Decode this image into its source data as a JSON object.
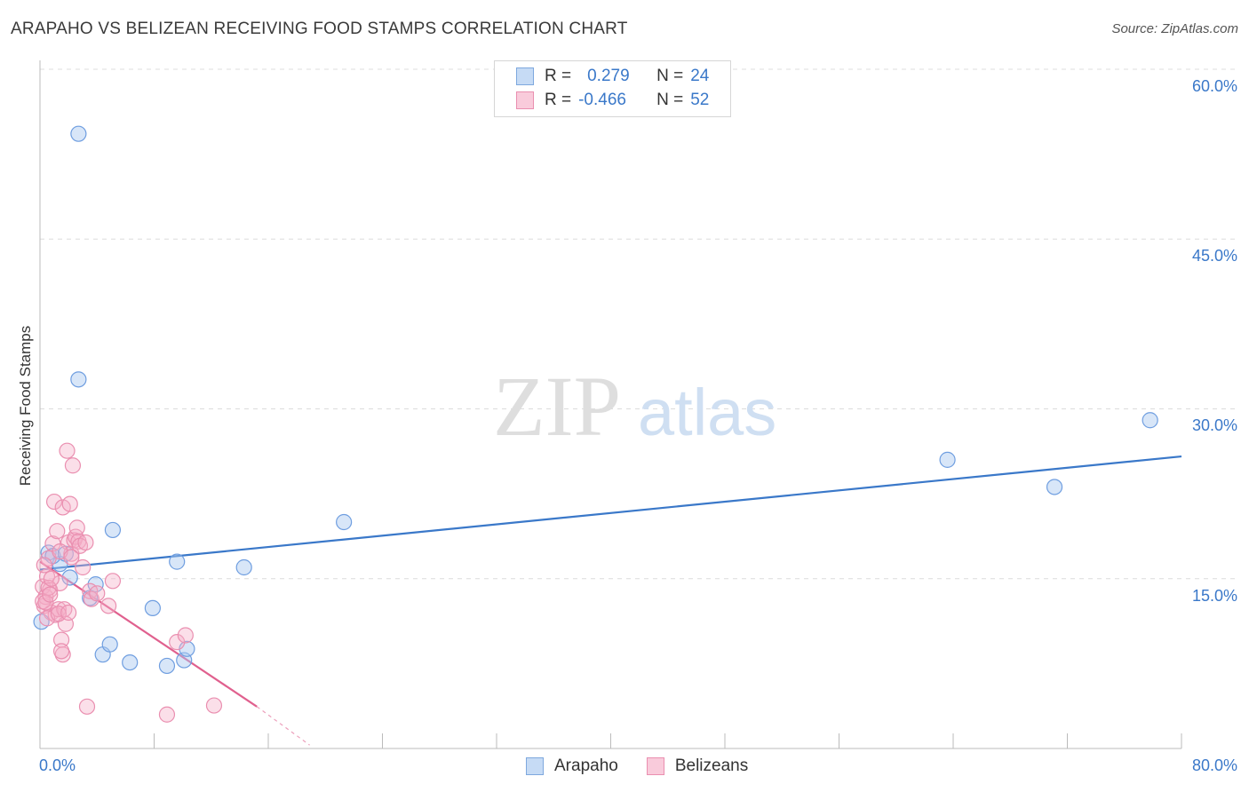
{
  "header": {
    "title": "ARAPAHO VS BELIZEAN RECEIVING FOOD STAMPS CORRELATION CHART",
    "source": "Source: ZipAtlas.com"
  },
  "watermark": {
    "zip": "ZIP",
    "atlas": "atlas"
  },
  "colors": {
    "blue": "#3a78c9",
    "blue_fill": "#a9c8f0",
    "pink": "#e0608e",
    "pink_fill": "#f4b0c8",
    "grid": "#dcdcdc"
  },
  "legend_top": {
    "rows": [
      {
        "r_label": "R =",
        "r_value": "0.279",
        "n_label": "N =",
        "n_value": "24"
      },
      {
        "r_label": "R =",
        "r_value": "-0.466",
        "n_label": "N =",
        "n_value": "52"
      }
    ]
  },
  "chart_data": {
    "type": "scatter",
    "title": "ARAPAHO VS BELIZEAN RECEIVING FOOD STAMPS CORRELATION CHART",
    "xlabel": "",
    "ylabel": "Receiving Food Stamps",
    "xlim": [
      0,
      80
    ],
    "ylim": [
      0,
      60
    ],
    "x_tick_labels": [
      "0.0%",
      "80.0%"
    ],
    "y_tick_labels": [
      "15.0%",
      "30.0%",
      "45.0%",
      "60.0%"
    ],
    "y_ticks": [
      15,
      30,
      45,
      60
    ],
    "series": [
      {
        "name": "Arapaho",
        "points": [
          [
            0.1,
            11.2
          ],
          [
            0.6,
            17.3
          ],
          [
            1.4,
            16.3
          ],
          [
            2.1,
            15.1
          ],
          [
            2.7,
            32.6
          ],
          [
            2.7,
            54.3
          ],
          [
            3.9,
            14.5
          ],
          [
            3.5,
            13.3
          ],
          [
            4.4,
            8.3
          ],
          [
            4.9,
            9.2
          ],
          [
            5.1,
            19.3
          ],
          [
            6.3,
            7.6
          ],
          [
            7.9,
            12.4
          ],
          [
            8.9,
            7.3
          ],
          [
            9.6,
            16.5
          ],
          [
            10.1,
            7.8
          ],
          [
            10.3,
            8.8
          ],
          [
            14.3,
            16.0
          ],
          [
            21.3,
            20.0
          ],
          [
            63.6,
            25.5
          ],
          [
            71.1,
            23.1
          ],
          [
            77.8,
            29.0
          ],
          [
            0.9,
            17.0
          ],
          [
            1.8,
            17.2
          ]
        ],
        "trend": {
          "x": [
            0,
            80
          ],
          "y": [
            15.8,
            25.8
          ]
        }
      },
      {
        "name": "Belizeans",
        "points": [
          [
            0.2,
            14.3
          ],
          [
            0.3,
            12.6
          ],
          [
            0.4,
            13.4
          ],
          [
            0.5,
            15.2
          ],
          [
            0.6,
            16.8
          ],
          [
            0.7,
            14.0
          ],
          [
            0.8,
            12.0
          ],
          [
            0.9,
            18.1
          ],
          [
            1.0,
            21.8
          ],
          [
            1.1,
            11.8
          ],
          [
            1.2,
            19.2
          ],
          [
            1.3,
            12.3
          ],
          [
            1.4,
            14.6
          ],
          [
            1.5,
            9.6
          ],
          [
            1.6,
            21.3
          ],
          [
            1.7,
            12.3
          ],
          [
            1.8,
            11.0
          ],
          [
            1.9,
            26.3
          ],
          [
            2.0,
            18.2
          ],
          [
            2.1,
            21.6
          ],
          [
            2.2,
            17.2
          ],
          [
            2.3,
            25.0
          ],
          [
            2.4,
            18.4
          ],
          [
            2.5,
            18.7
          ],
          [
            2.6,
            19.5
          ],
          [
            2.7,
            18.3
          ],
          [
            2.8,
            17.9
          ],
          [
            3.0,
            16.0
          ],
          [
            3.2,
            18.2
          ],
          [
            3.5,
            13.9
          ],
          [
            3.6,
            13.2
          ],
          [
            4.0,
            13.7
          ],
          [
            4.8,
            12.6
          ],
          [
            5.1,
            14.8
          ],
          [
            0.2,
            13.0
          ],
          [
            0.3,
            16.2
          ],
          [
            0.4,
            12.9
          ],
          [
            0.5,
            11.5
          ],
          [
            0.6,
            14.2
          ],
          [
            0.7,
            13.6
          ],
          [
            0.8,
            15.0
          ],
          [
            1.6,
            8.3
          ],
          [
            1.5,
            8.6
          ],
          [
            1.3,
            11.9
          ],
          [
            1.4,
            17.4
          ],
          [
            3.3,
            3.7
          ],
          [
            8.9,
            3.0
          ],
          [
            12.2,
            3.8
          ],
          [
            9.6,
            9.4
          ],
          [
            10.2,
            10.0
          ],
          [
            2.2,
            16.9
          ],
          [
            2.0,
            12.0
          ]
        ],
        "trend": {
          "x": [
            0,
            15.2
          ],
          "y": [
            16.5,
            3.7
          ]
        },
        "trend_dashed": {
          "x": [
            15.2,
            18.9
          ],
          "y": [
            3.7,
            0.3
          ]
        }
      }
    ]
  },
  "legend_bottom": {
    "items": [
      "Arapaho",
      "Belizeans"
    ]
  }
}
